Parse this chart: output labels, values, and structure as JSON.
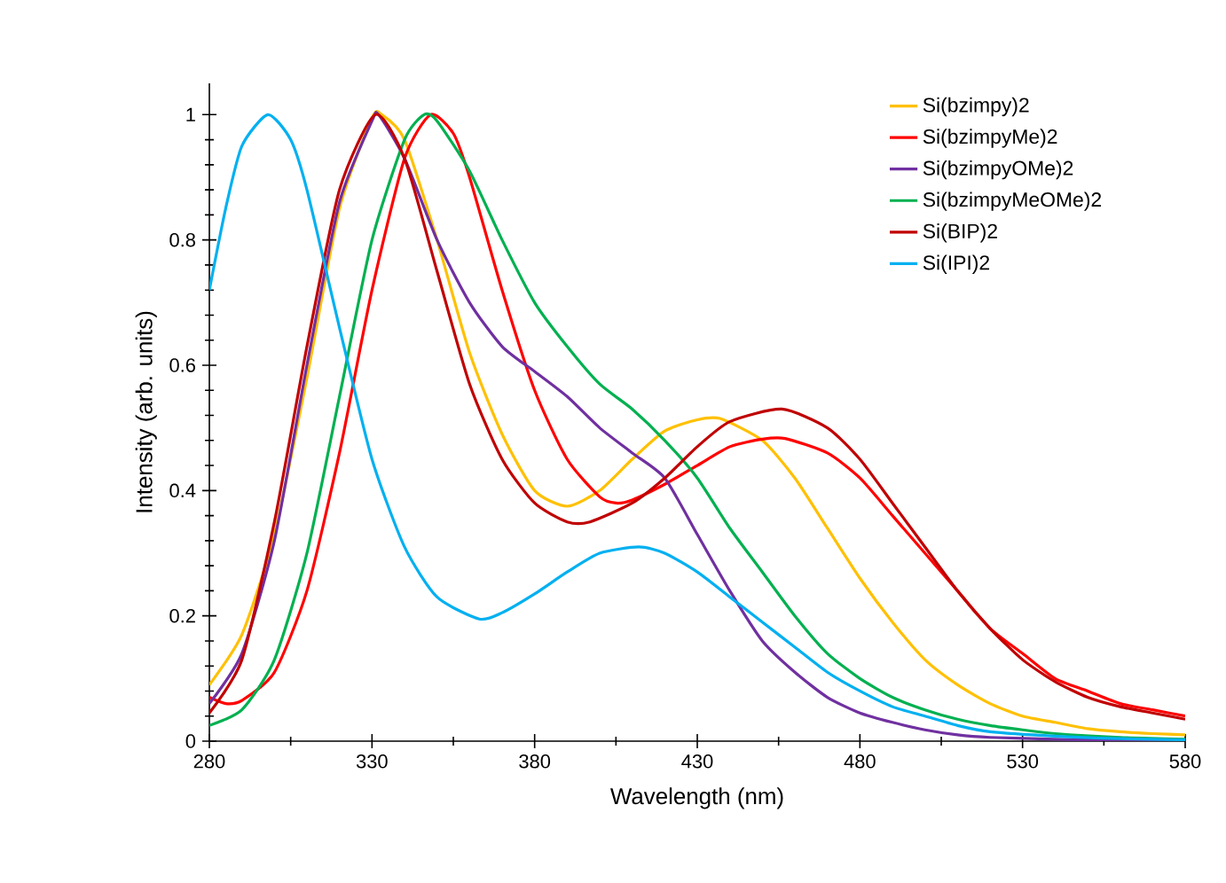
{
  "chart_data": {
    "type": "line",
    "xlabel": "Wavelength (nm)",
    "ylabel": "Intensity (arb. units)",
    "xlim": [
      280,
      580
    ],
    "xticks": [
      280,
      330,
      380,
      430,
      480,
      530,
      580
    ],
    "ylim": [
      0,
      1.05
    ],
    "yticks": [
      0,
      0.2,
      0.4,
      0.6,
      0.8,
      1
    ],
    "grid": false,
    "legend": "top right",
    "series": [
      {
        "name": "Si(bzimpy)2",
        "color": "#ffc000",
        "x": [
          280,
          290,
          300,
          310,
          320,
          330,
          333,
          340,
          350,
          360,
          370,
          380,
          390,
          400,
          410,
          420,
          430,
          437,
          450,
          460,
          470,
          480,
          490,
          500,
          510,
          520,
          530,
          540,
          550,
          560,
          570,
          580
        ],
        "values": [
          0.09,
          0.17,
          0.33,
          0.58,
          0.85,
          0.995,
          1.0,
          0.96,
          0.8,
          0.62,
          0.49,
          0.4,
          0.375,
          0.4,
          0.45,
          0.495,
          0.513,
          0.515,
          0.48,
          0.42,
          0.34,
          0.26,
          0.19,
          0.13,
          0.09,
          0.06,
          0.04,
          0.03,
          0.02,
          0.015,
          0.012,
          0.01
        ]
      },
      {
        "name": "Si(bzimpyMe)2",
        "color": "#ff0000",
        "x": [
          280,
          285,
          290,
          300,
          310,
          320,
          330,
          340,
          348,
          355,
          360,
          370,
          380,
          390,
          400,
          405,
          410,
          420,
          430,
          440,
          450,
          457,
          470,
          480,
          490,
          500,
          510,
          520,
          530,
          540,
          550,
          560,
          570,
          580
        ],
        "values": [
          0.07,
          0.06,
          0.065,
          0.11,
          0.24,
          0.46,
          0.72,
          0.93,
          1.0,
          0.97,
          0.9,
          0.72,
          0.56,
          0.45,
          0.39,
          0.38,
          0.385,
          0.41,
          0.44,
          0.47,
          0.482,
          0.483,
          0.46,
          0.42,
          0.36,
          0.3,
          0.24,
          0.18,
          0.14,
          0.1,
          0.08,
          0.06,
          0.05,
          0.04
        ]
      },
      {
        "name": "Si(bzimpyOMe)2",
        "color": "#7030a0",
        "x": [
          280,
          290,
          300,
          310,
          320,
          330,
          332,
          340,
          350,
          360,
          370,
          380,
          390,
          400,
          410,
          420,
          430,
          440,
          450,
          460,
          470,
          480,
          490,
          500,
          510,
          520,
          540,
          560,
          580
        ],
        "values": [
          0.06,
          0.14,
          0.32,
          0.6,
          0.86,
          0.99,
          1.0,
          0.93,
          0.8,
          0.7,
          0.63,
          0.59,
          0.55,
          0.5,
          0.46,
          0.42,
          0.33,
          0.24,
          0.16,
          0.11,
          0.07,
          0.045,
          0.03,
          0.018,
          0.01,
          0.006,
          0.003,
          0.001,
          0
        ]
      },
      {
        "name": "Si(bzimpyMeOMe)2",
        "color": "#00b050",
        "x": [
          280,
          290,
          300,
          310,
          320,
          330,
          340,
          346,
          350,
          360,
          370,
          380,
          390,
          400,
          410,
          420,
          430,
          440,
          450,
          460,
          470,
          480,
          490,
          500,
          510,
          520,
          530,
          540,
          560,
          580
        ],
        "values": [
          0.025,
          0.05,
          0.13,
          0.3,
          0.55,
          0.8,
          0.96,
          1.0,
          0.99,
          0.91,
          0.8,
          0.7,
          0.63,
          0.57,
          0.53,
          0.48,
          0.42,
          0.34,
          0.27,
          0.2,
          0.14,
          0.1,
          0.07,
          0.05,
          0.035,
          0.025,
          0.018,
          0.012,
          0.006,
          0.003
        ]
      },
      {
        "name": "Si(BIP)2",
        "color": "#c00000",
        "x": [
          280,
          290,
          300,
          310,
          320,
          331,
          340,
          350,
          360,
          370,
          380,
          390,
          397,
          410,
          420,
          430,
          440,
          456,
          470,
          480,
          490,
          500,
          510,
          520,
          530,
          540,
          550,
          560,
          570,
          580
        ],
        "values": [
          0.045,
          0.13,
          0.35,
          0.63,
          0.88,
          1.0,
          0.93,
          0.75,
          0.57,
          0.45,
          0.38,
          0.35,
          0.35,
          0.38,
          0.42,
          0.47,
          0.51,
          0.53,
          0.5,
          0.45,
          0.38,
          0.31,
          0.24,
          0.18,
          0.13,
          0.095,
          0.07,
          0.055,
          0.045,
          0.035
        ]
      },
      {
        "name": "Si(IPI)2",
        "color": "#00b0f0",
        "x": [
          280,
          285,
          290,
          298,
          305,
          310,
          320,
          330,
          340,
          350,
          363,
          370,
          380,
          390,
          400,
          412,
          420,
          430,
          440,
          450,
          460,
          470,
          480,
          490,
          500,
          510,
          520,
          540,
          560,
          580
        ],
        "values": [
          0.72,
          0.85,
          0.95,
          1.0,
          0.96,
          0.88,
          0.66,
          0.45,
          0.31,
          0.23,
          0.195,
          0.205,
          0.235,
          0.27,
          0.3,
          0.31,
          0.3,
          0.27,
          0.23,
          0.19,
          0.15,
          0.11,
          0.08,
          0.055,
          0.04,
          0.025,
          0.015,
          0.008,
          0.004,
          0.002
        ]
      }
    ]
  }
}
